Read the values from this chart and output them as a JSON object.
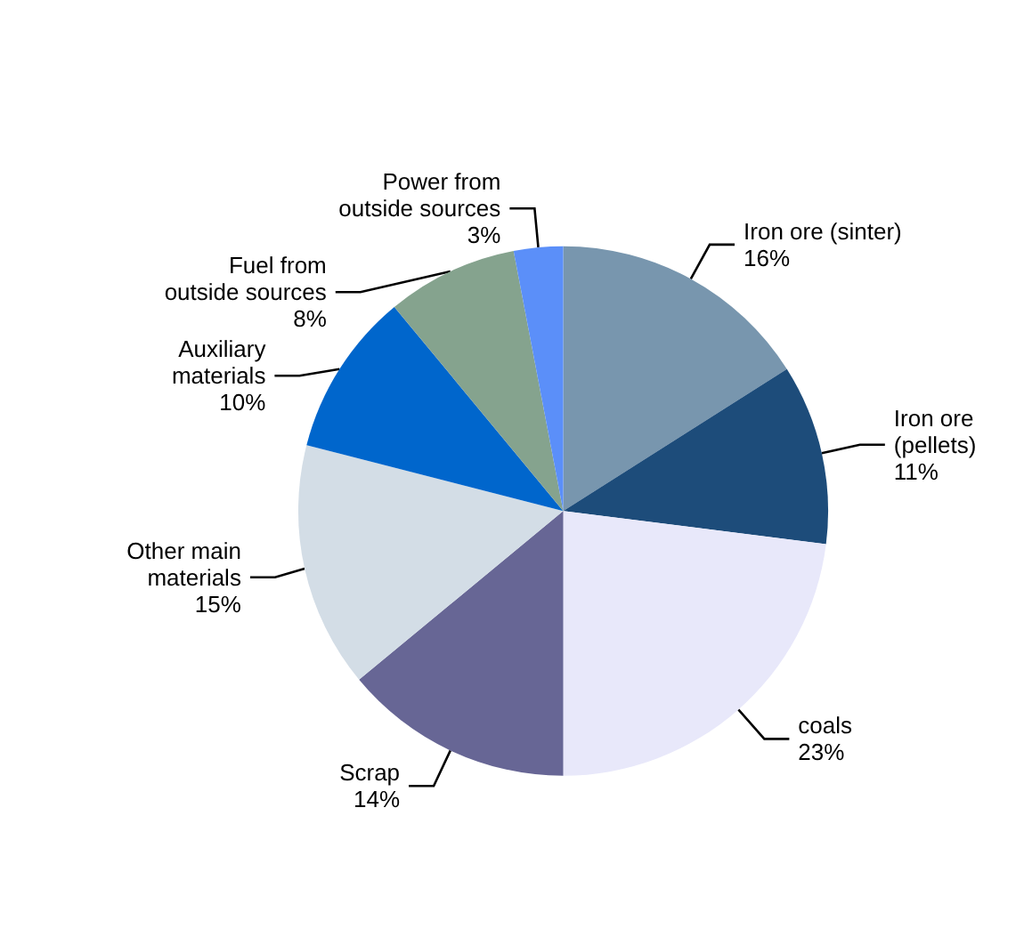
{
  "chart_data": {
    "type": "pie",
    "categories": [
      "Iron ore (sinter)",
      "Iron ore\n(pellets)",
      "coals",
      "Scrap",
      "Other main\nmaterials",
      "Auxiliary\nmaterials",
      "Fuel from\noutside sources",
      "Power from\noutside sources"
    ],
    "values": [
      16,
      11,
      23,
      14,
      15,
      10,
      8,
      3
    ],
    "value_labels": [
      "16%",
      "11%",
      "23%",
      "14%",
      "15%",
      "10%",
      "8%",
      "3%"
    ],
    "colors": [
      "#7896ae",
      "#1d4c7a",
      "#e8e8fa",
      "#676695",
      "#d3dde6",
      "#0066cc",
      "#85a38e",
      "#5b8ff9"
    ],
    "legend": false
  }
}
